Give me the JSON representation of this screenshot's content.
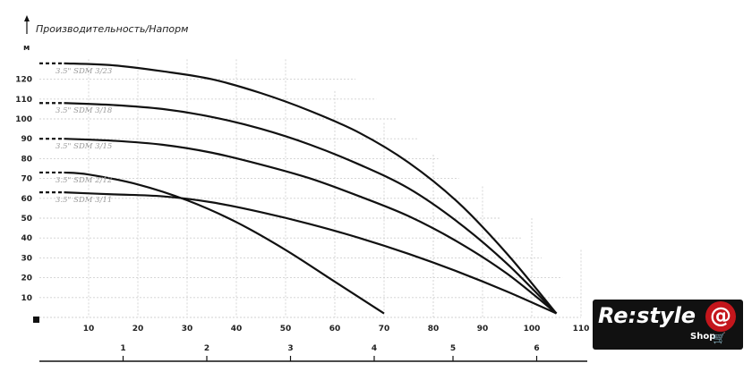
{
  "chart_data": {
    "type": "line",
    "title": "Производительность/Напорм",
    "y_unit": "м",
    "ylim": [
      0,
      130
    ],
    "y_ticks": [
      "10",
      "20",
      "30",
      "40",
      "50",
      "60",
      "70",
      "80",
      "90",
      "100",
      "110",
      "120"
    ],
    "xlim": [
      0,
      110
    ],
    "x_ticks": [
      "10",
      "20",
      "30",
      "40",
      "50",
      "60",
      "70",
      "80",
      "90",
      "100",
      "110"
    ],
    "x2_ticks": [
      "1",
      "2",
      "3",
      "4",
      "5",
      "6"
    ],
    "x2_tick_positions": [
      17,
      34,
      51,
      68,
      84,
      101
    ],
    "grid": true,
    "series": [
      {
        "name": "3.5\" SDM 3/23",
        "x": [
          0,
          5,
          15,
          25,
          35,
          45,
          55,
          65,
          75,
          85,
          95,
          105
        ],
        "y": [
          128,
          128,
          127,
          124,
          120,
          113,
          104,
          93,
          78,
          58,
          32,
          2
        ]
      },
      {
        "name": "3.5\" SDM 3/18",
        "x": [
          0,
          5,
          15,
          25,
          35,
          45,
          55,
          65,
          75,
          85,
          95,
          105
        ],
        "y": [
          108,
          108,
          107,
          105,
          101,
          95,
          87,
          77,
          65,
          48,
          27,
          2
        ]
      },
      {
        "name": "3.5\" SDM 3/15",
        "x": [
          0,
          5,
          15,
          25,
          35,
          45,
          55,
          65,
          75,
          85,
          95,
          105
        ],
        "y": [
          90,
          90,
          89,
          87,
          83,
          77,
          70,
          61,
          51,
          38,
          22,
          2
        ]
      },
      {
        "name": "3.5\" SDM 2/12",
        "x": [
          0,
          5,
          10,
          20,
          30,
          40,
          50,
          60,
          70
        ],
        "y": [
          73,
          73,
          72,
          67,
          59,
          48,
          34,
          18,
          2
        ]
      },
      {
        "name": "3.5\" SDM 3/11",
        "x": [
          0,
          5,
          15,
          25,
          35,
          45,
          55,
          65,
          75,
          85,
          95,
          105
        ],
        "y": [
          63,
          63,
          62,
          61,
          58,
          53,
          47,
          40,
          32,
          23,
          13,
          2
        ]
      }
    ]
  },
  "logo": {
    "main": "Re:style",
    "at": "@",
    "sub": "Shop",
    "cart": "🛒"
  }
}
